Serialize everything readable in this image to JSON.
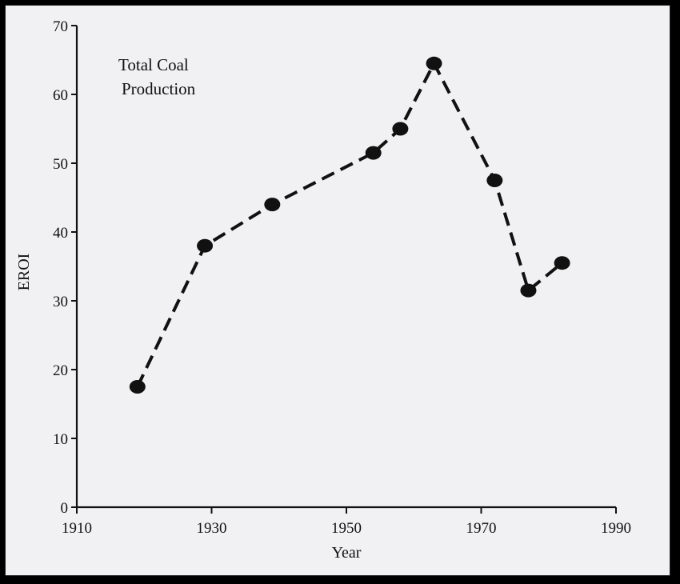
{
  "chart_data": {
    "type": "line",
    "title": "",
    "annotation_lines": [
      "Total Coal",
      "Production"
    ],
    "xlabel": "Year",
    "ylabel": "EROI",
    "xlim": [
      1910,
      1990
    ],
    "ylim": [
      0,
      70
    ],
    "xticks": [
      1910,
      1930,
      1950,
      1970,
      1990
    ],
    "yticks": [
      0,
      10,
      20,
      30,
      40,
      50,
      60,
      70
    ],
    "grid": false,
    "legend": "none",
    "line_style": "dashed",
    "series_color": "#111111",
    "x": [
      1919,
      1929,
      1939,
      1954,
      1958,
      1963,
      1972,
      1977,
      1982
    ],
    "values": [
      17.5,
      38,
      44,
      51.5,
      55,
      64.5,
      47.5,
      31.5,
      35.5
    ]
  }
}
